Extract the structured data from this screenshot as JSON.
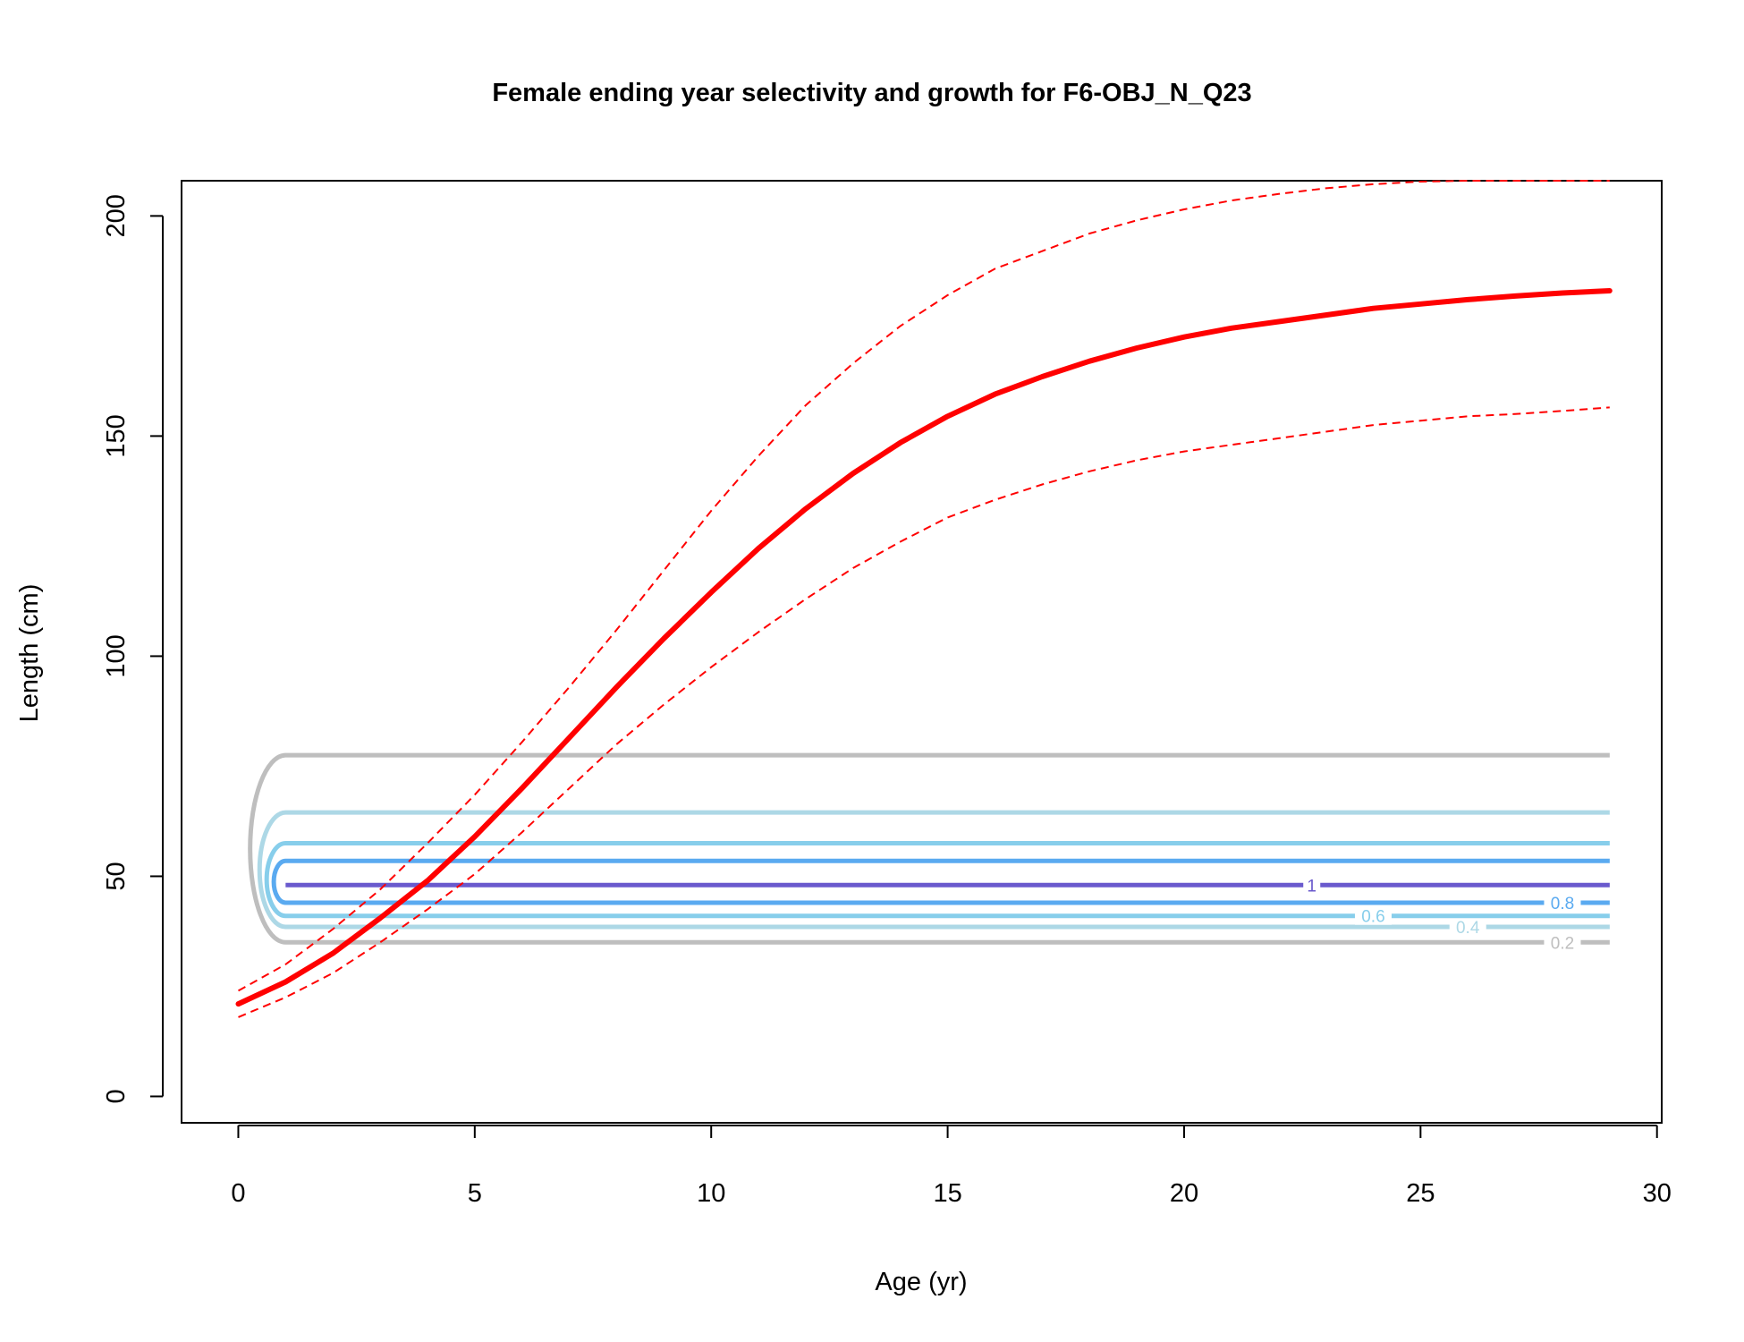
{
  "chart_data": {
    "type": "line",
    "title": "Female ending year selectivity and growth for F6-OBJ_N_Q23",
    "xlabel": "Age (yr)",
    "ylabel": "Length (cm)",
    "xlim": [
      -1.2,
      30.1
    ],
    "ylim": [
      -6,
      208
    ],
    "xticks": [
      0,
      5,
      10,
      15,
      20,
      25,
      30
    ],
    "yticks": [
      0,
      50,
      100,
      150,
      200
    ],
    "grid": false,
    "growth": {
      "color": "#ff0000",
      "ages": [
        0,
        1,
        2,
        3,
        4,
        5,
        6,
        7,
        8,
        9,
        10,
        11,
        12,
        13,
        14,
        15,
        16,
        17,
        18,
        19,
        20,
        21,
        22,
        23,
        24,
        25,
        26,
        27,
        28,
        29
      ],
      "mean": [
        21,
        26,
        32.5,
        40.5,
        49,
        59,
        70,
        81.5,
        93,
        104,
        114.5,
        124.5,
        133.5,
        141.5,
        148.5,
        154.5,
        159.5,
        163.5,
        167,
        170,
        172.5,
        174.5,
        176,
        177.5,
        179,
        180,
        181,
        181.8,
        182.5,
        183
      ],
      "upper": [
        24,
        30,
        38,
        47,
        57.5,
        68.5,
        80.5,
        93,
        106,
        119.5,
        133,
        145.5,
        157,
        166.5,
        175,
        182,
        188,
        192,
        196,
        199,
        201.5,
        203.5,
        205,
        206.3,
        207.2,
        207.8,
        208,
        208,
        208,
        208
      ],
      "lower": [
        18,
        22.5,
        28,
        35,
        42.5,
        50.5,
        60,
        70,
        80,
        89,
        97.5,
        105.5,
        113,
        120,
        126,
        131.5,
        135.5,
        139,
        142,
        144.5,
        146.5,
        148,
        149.5,
        151,
        152.5,
        153.5,
        154.5,
        155,
        155.7,
        156.5
      ]
    },
    "contours": [
      {
        "level": "0.2",
        "color": "#bebebe",
        "upper_y": 77.5,
        "lower_y": 35,
        "xmin": 0.25,
        "label_x": 28.0
      },
      {
        "level": "0.4",
        "color": "#add8e6",
        "upper_y": 64.5,
        "lower_y": 38.5,
        "xmin": 0.45,
        "label_x": 26.0
      },
      {
        "level": "0.6",
        "color": "#87ceeb",
        "upper_y": 57.5,
        "lower_y": 41,
        "xmin": 0.6,
        "label_x": 24.0
      },
      {
        "level": "0.8",
        "color": "#5aaaf0",
        "upper_y": 53.5,
        "lower_y": 44,
        "xmin": 0.75,
        "label_x": 28.0
      },
      {
        "level": "1",
        "color": "#6a5acd",
        "upper_y": 48,
        "lower_y": 48,
        "xmin": 1.0,
        "label_x": 22.7
      }
    ],
    "contour_x_start": 1.0,
    "contour_x_end": 29
  }
}
